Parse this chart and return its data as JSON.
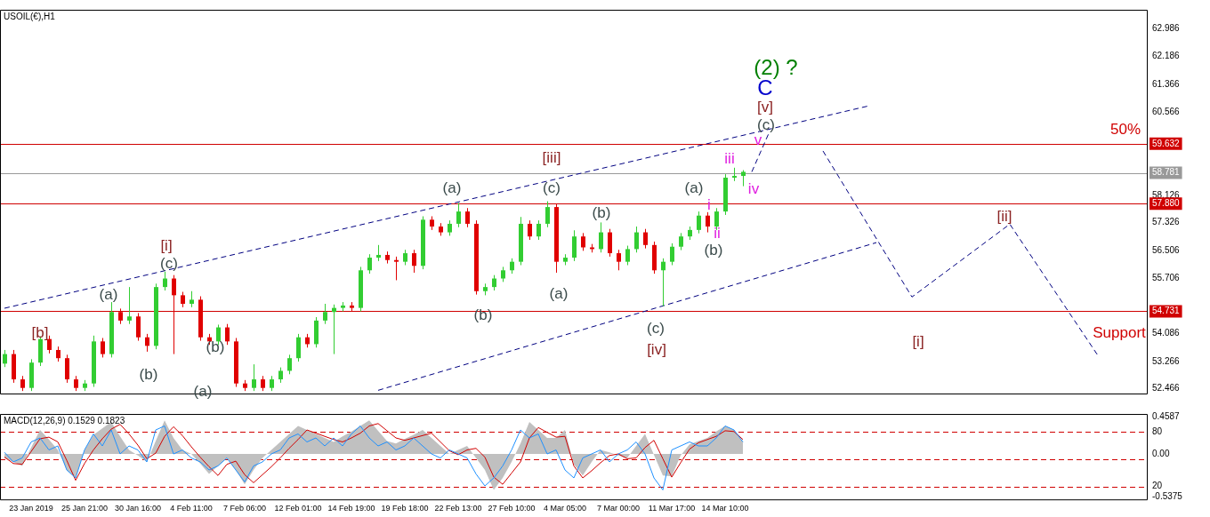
{
  "chart_data": [
    {
      "type": "candlestick",
      "title": "USOIL(€),H1",
      "tick_labels": "y",
      "line_style": "dashed",
      "categories": [
        null,
        null,
        null,
        null,
        null,
        null,
        null,
        null,
        null,
        null,
        null,
        null,
        null,
        null,
        null,
        null,
        null,
        null,
        null,
        null,
        null,
        null,
        null,
        null,
        null,
        null,
        null,
        null,
        null,
        null,
        null,
        null,
        null,
        null,
        null,
        null,
        null,
        null,
        null,
        null,
        null,
        null,
        null,
        null,
        null,
        null,
        null,
        null,
        null,
        null,
        null,
        null,
        null,
        null,
        null,
        null,
        null,
        null,
        null,
        null,
        null,
        null,
        null,
        null,
        null,
        null,
        null,
        null,
        null,
        null,
        null,
        null,
        null,
        null,
        null,
        null,
        null,
        null,
        null,
        null,
        null,
        null,
        null,
        null,
        null,
        null,
        null,
        null,
        null,
        null,
        null,
        null,
        null,
        null,
        null,
        null,
        null,
        null,
        null,
        null,
        null,
        null,
        null,
        null,
        null,
        null,
        null,
        null,
        null,
        null,
        null,
        null,
        null,
        null,
        null,
        null,
        null,
        null,
        null,
        null,
        null,
        null,
        null,
        null,
        null,
        null,
        null,
        null,
        null
      ],
      "ohlc": [
        [
          53.2,
          53.6,
          53.1,
          53.48
        ],
        [
          53.48,
          53.6,
          52.64,
          52.74
        ],
        [
          52.74,
          52.84,
          52.4,
          52.49
        ],
        [
          52.49,
          53.33,
          52.4,
          53.23
        ],
        [
          53.23,
          54.0,
          53.13,
          53.92
        ],
        [
          53.92,
          54.02,
          53.5,
          53.6
        ],
        [
          53.6,
          53.7,
          53.26,
          53.36
        ],
        [
          53.36,
          53.46,
          52.64,
          52.74
        ],
        [
          52.74,
          52.84,
          52.4,
          52.49
        ],
        [
          52.49,
          52.72,
          52.4,
          52.62
        ],
        [
          52.62,
          54.02,
          52.52,
          53.85
        ],
        [
          53.85,
          53.95,
          53.38,
          53.48
        ],
        [
          53.48,
          55.0,
          53.38,
          54.71
        ],
        [
          54.71,
          54.81,
          54.36,
          54.46
        ],
        [
          54.46,
          55.44,
          54.36,
          54.58
        ],
        [
          54.58,
          54.68,
          53.87,
          53.97
        ],
        [
          53.97,
          54.07,
          53.55,
          53.72
        ],
        [
          53.72,
          55.54,
          53.62,
          55.44
        ],
        [
          55.44,
          55.89,
          55.34,
          55.69
        ],
        [
          55.69,
          55.79,
          53.48,
          55.2
        ],
        [
          55.2,
          55.3,
          54.85,
          54.95
        ],
        [
          54.95,
          55.32,
          54.85,
          55.07
        ],
        [
          55.07,
          55.17,
          53.87,
          53.97
        ],
        [
          53.97,
          54.07,
          53.75,
          53.85
        ],
        [
          53.85,
          54.34,
          53.75,
          54.26
        ],
        [
          54.26,
          54.36,
          53.75,
          53.85
        ],
        [
          53.85,
          53.95,
          52.52,
          52.62
        ],
        [
          52.62,
          52.72,
          52.4,
          52.49
        ],
        [
          52.49,
          53.18,
          52.4,
          52.74
        ],
        [
          52.74,
          52.84,
          52.4,
          52.49
        ],
        [
          52.49,
          52.84,
          52.4,
          52.74
        ],
        [
          52.74,
          53.09,
          52.64,
          52.99
        ],
        [
          52.99,
          53.46,
          52.89,
          53.36
        ],
        [
          53.36,
          54.07,
          53.26,
          53.97
        ],
        [
          53.97,
          54.07,
          53.67,
          53.77
        ],
        [
          53.77,
          54.56,
          53.67,
          54.46
        ],
        [
          54.46,
          54.95,
          54.36,
          54.71
        ],
        [
          54.71,
          54.93,
          53.48,
          54.83
        ],
        [
          54.83,
          55.0,
          54.73,
          54.9
        ],
        [
          54.9,
          55.0,
          54.73,
          54.83
        ],
        [
          54.83,
          56.03,
          54.73,
          55.93
        ],
        [
          55.93,
          56.4,
          55.83,
          56.3
        ],
        [
          56.3,
          56.67,
          56.2,
          56.38
        ],
        [
          56.38,
          56.48,
          56.13,
          56.23
        ],
        [
          56.23,
          56.33,
          55.64,
          56.18
        ],
        [
          56.18,
          56.53,
          56.08,
          56.43
        ],
        [
          56.43,
          56.53,
          55.86,
          56.06
        ],
        [
          56.06,
          57.51,
          55.96,
          57.41
        ],
        [
          57.41,
          57.51,
          57.11,
          57.21
        ],
        [
          57.21,
          57.31,
          56.94,
          57.04
        ],
        [
          57.04,
          57.39,
          56.94,
          57.29
        ],
        [
          57.29,
          57.9,
          57.19,
          57.65
        ],
        [
          57.65,
          57.75,
          57.19,
          57.29
        ],
        [
          57.29,
          57.39,
          55.22,
          55.32
        ],
        [
          55.32,
          55.54,
          55.2,
          55.44
        ],
        [
          55.44,
          55.79,
          55.34,
          55.69
        ],
        [
          55.69,
          56.03,
          55.59,
          55.93
        ],
        [
          55.93,
          56.28,
          55.83,
          56.18
        ],
        [
          56.18,
          57.49,
          56.08,
          57.29
        ],
        [
          57.29,
          57.39,
          56.82,
          56.92
        ],
        [
          56.92,
          57.39,
          56.82,
          57.29
        ],
        [
          57.29,
          57.95,
          57.19,
          57.78
        ],
        [
          57.78,
          57.88,
          55.86,
          56.18
        ],
        [
          56.18,
          56.4,
          56.08,
          56.3
        ],
        [
          56.3,
          57.1,
          56.2,
          56.92
        ],
        [
          56.92,
          57.02,
          56.5,
          56.6
        ],
        [
          56.6,
          56.7,
          56.45,
          56.55
        ],
        [
          56.55,
          57.33,
          56.45,
          57.04
        ],
        [
          57.04,
          57.14,
          56.33,
          56.43
        ],
        [
          56.43,
          56.53,
          55.93,
          56.18
        ],
        [
          56.18,
          56.65,
          56.08,
          56.55
        ],
        [
          56.55,
          57.21,
          56.45,
          57.04
        ],
        [
          57.04,
          57.14,
          56.57,
          56.67
        ],
        [
          56.67,
          56.77,
          55.83,
          55.93
        ],
        [
          55.93,
          56.28,
          54.88,
          56.18
        ],
        [
          56.18,
          56.72,
          56.08,
          56.62
        ],
        [
          56.62,
          57.02,
          56.52,
          56.92
        ],
        [
          56.92,
          57.21,
          56.82,
          57.11
        ],
        [
          57.11,
          57.65,
          57.01,
          57.53
        ],
        [
          57.53,
          57.63,
          57.04,
          57.21
        ],
        [
          57.21,
          57.75,
          57.11,
          57.65
        ],
        [
          57.65,
          58.74,
          57.55,
          58.64
        ],
        [
          58.64,
          58.93,
          58.54,
          58.69
        ],
        [
          58.69,
          58.86,
          58.39,
          58.81
        ],
        null,
        null,
        null,
        null,
        null,
        null,
        null,
        null,
        null,
        null,
        null,
        null,
        null,
        null,
        null,
        null,
        null,
        null,
        null,
        null,
        null,
        null,
        null,
        null,
        null,
        null,
        null,
        null,
        null,
        null,
        null,
        null,
        null,
        null,
        null,
        null,
        null,
        null,
        null,
        null,
        null,
        null,
        null,
        null,
        null
      ],
      "colors": [
        "#32cd32",
        "#e00000",
        "#e00000",
        "#32cd32",
        "#32cd32",
        "#e00000",
        "#e00000",
        "#e00000",
        "#e00000",
        "#32cd32",
        "#32cd32",
        "#e00000",
        "#32cd32",
        "#e00000",
        "#32cd32",
        "#e00000",
        "#e00000",
        "#32cd32",
        "#32cd32",
        "#e00000",
        "#e00000",
        "#32cd32",
        "#e00000",
        "#e00000",
        "#32cd32",
        "#e00000",
        "#e00000",
        "#e00000",
        "#32cd32",
        "#e00000",
        "#32cd32",
        "#32cd32",
        "#32cd32",
        "#32cd32",
        "#e00000",
        "#32cd32",
        "#32cd32",
        "#32cd32",
        "#32cd32",
        "#e00000",
        "#32cd32",
        "#32cd32",
        "#32cd32",
        "#e00000",
        "#e00000",
        "#32cd32",
        "#e00000",
        "#32cd32",
        "#e00000",
        "#e00000",
        "#32cd32",
        "#32cd32",
        "#e00000",
        "#e00000",
        "#32cd32",
        "#32cd32",
        "#32cd32",
        "#32cd32",
        "#32cd32",
        "#e00000",
        "#32cd32",
        "#32cd32",
        "#e00000",
        "#32cd32",
        "#32cd32",
        "#e00000",
        "#e00000",
        "#32cd32",
        "#e00000",
        "#e00000",
        "#32cd32",
        "#32cd32",
        "#e00000",
        "#e00000",
        "#32cd32",
        "#32cd32",
        "#32cd32",
        "#32cd32",
        "#32cd32",
        "#e00000",
        "#32cd32",
        "#32cd32",
        "#32cd32",
        "#32cd32",
        null,
        null,
        null,
        null,
        null,
        null,
        null,
        null,
        null,
        null,
        null,
        null,
        null,
        null,
        null,
        null,
        null,
        null,
        null,
        null,
        null,
        null,
        null,
        null,
        null,
        null,
        null,
        null,
        null,
        null,
        null,
        null,
        null,
        null,
        null,
        null,
        null,
        null,
        null,
        null,
        null,
        null,
        null,
        null,
        null
      ],
      "ylim": [
        52.3,
        63.55
      ],
      "yticks": [
        62.986,
        62.186,
        61.366,
        60.566,
        58.126,
        57.326,
        56.506,
        55.706,
        54.086,
        53.266,
        52.466
      ],
      "series": [
        {
          "type": "line",
          "color": "#000080",
          "values": [
            54.82,
            null,
            null,
            null,
            null,
            null,
            null,
            null,
            null,
            null,
            null,
            null,
            null,
            null,
            null,
            null,
            null,
            null,
            null,
            null,
            null,
            null,
            null,
            null,
            null,
            null,
            null,
            null,
            null,
            null,
            null,
            null,
            null,
            null,
            null,
            null,
            null,
            null,
            null,
            null,
            null,
            null,
            null,
            null,
            null,
            null,
            null,
            null,
            null,
            null,
            null,
            null,
            null,
            null,
            null,
            null,
            null,
            null,
            null,
            null,
            null,
            null,
            null,
            null,
            null,
            null,
            null,
            null,
            null,
            null,
            null,
            null,
            null,
            null,
            null,
            null,
            null,
            null,
            null,
            null,
            null,
            null,
            null,
            null,
            null,
            null,
            null,
            null,
            null,
            null,
            null,
            null,
            null,
            null,
            null,
            null,
            null,
            60.73,
            null,
            null,
            null,
            null,
            null,
            null,
            null,
            null,
            null,
            null,
            null,
            null,
            null,
            null,
            null,
            null,
            null,
            null,
            null,
            null,
            null,
            null,
            null,
            null,
            null,
            null,
            null,
            null,
            null,
            null,
            null
          ]
        },
        {
          "type": "line",
          "color": "#000080",
          "values": [
            null,
            null,
            null,
            null,
            null,
            null,
            null,
            null,
            null,
            null,
            null,
            null,
            null,
            null,
            null,
            null,
            null,
            null,
            null,
            null,
            null,
            null,
            null,
            null,
            null,
            null,
            null,
            null,
            null,
            null,
            null,
            null,
            null,
            null,
            null,
            null,
            null,
            null,
            null,
            null,
            null,
            null,
            52.42,
            null,
            null,
            null,
            null,
            null,
            null,
            null,
            null,
            null,
            null,
            null,
            null,
            null,
            null,
            null,
            null,
            null,
            null,
            null,
            null,
            null,
            null,
            null,
            null,
            null,
            null,
            null,
            null,
            null,
            null,
            null,
            null,
            null,
            null,
            null,
            null,
            null,
            null,
            null,
            null,
            null,
            null,
            null,
            null,
            null,
            null,
            null,
            null,
            null,
            null,
            null,
            null,
            null,
            null,
            null,
            56.74,
            null,
            null,
            null,
            null,
            null,
            null,
            null,
            null,
            null,
            null,
            null,
            null,
            null,
            null,
            null,
            null,
            null,
            null,
            null,
            null,
            null,
            null,
            null,
            null,
            null,
            null,
            null,
            null,
            null,
            null
          ]
        },
        {
          "type": "line",
          "color": "#000080",
          "values": [
            null,
            null,
            null,
            null,
            null,
            null,
            null,
            null,
            null,
            null,
            null,
            null,
            null,
            null,
            null,
            null,
            null,
            null,
            null,
            null,
            null,
            null,
            null,
            null,
            null,
            null,
            null,
            null,
            null,
            null,
            null,
            null,
            null,
            null,
            null,
            null,
            null,
            null,
            null,
            null,
            null,
            null,
            null,
            null,
            null,
            null,
            null,
            null,
            null,
            null,
            null,
            null,
            null,
            null,
            null,
            null,
            null,
            null,
            null,
            null,
            null,
            null,
            null,
            null,
            null,
            null,
            null,
            null,
            null,
            null,
            null,
            null,
            null,
            null,
            null,
            null,
            null,
            null,
            null,
            null,
            null,
            null,
            null,
            null,
            58.81,
            null,
            59.99,
            null,
            null,
            null,
            null,
            null,
            null,
            null,
            null,
            null,
            null,
            null,
            null,
            null,
            null,
            null,
            null,
            null,
            null,
            null,
            null,
            null,
            null,
            null,
            null,
            null,
            null,
            null,
            null,
            null,
            null,
            null,
            null,
            null,
            null,
            null,
            null,
            null,
            null,
            null,
            null,
            null,
            null
          ]
        },
        {
          "type": "line",
          "color": "#000080",
          "values": [
            null,
            null,
            null,
            null,
            null,
            null,
            null,
            null,
            null,
            null,
            null,
            null,
            null,
            null,
            null,
            null,
            null,
            null,
            null,
            null,
            null,
            null,
            null,
            null,
            null,
            null,
            null,
            null,
            null,
            null,
            null,
            null,
            null,
            null,
            null,
            null,
            null,
            null,
            null,
            null,
            null,
            null,
            null,
            null,
            null,
            null,
            null,
            null,
            null,
            null,
            null,
            null,
            null,
            null,
            null,
            null,
            null,
            null,
            null,
            null,
            null,
            null,
            null,
            null,
            null,
            null,
            null,
            null,
            null,
            null,
            null,
            null,
            null,
            null,
            null,
            null,
            null,
            null,
            null,
            null,
            null,
            null,
            null,
            null,
            null,
            null,
            null,
            null,
            null,
            null,
            null,
            null,
            59.42,
            null,
            null,
            null,
            null,
            null,
            null,
            null,
            null,
            null,
            55.15,
            null,
            null,
            null,
            null,
            null,
            null,
            null,
            null,
            null,
            null,
            57.28,
            null,
            null,
            null,
            null,
            null,
            null,
            null,
            null,
            null,
            53.4,
            null,
            null,
            null,
            null,
            null
          ]
        }
      ],
      "ref_lines": [
        {
          "axis": "y",
          "value": 59.632,
          "label": "59.632",
          "color": "#d00000",
          "line_style": "solid"
        },
        {
          "axis": "y",
          "value": 58.781,
          "label": "58.781",
          "color": "#999999",
          "line_style": "solid"
        },
        {
          "axis": "y",
          "value": 57.88,
          "label": "57.880",
          "color": "#d00000",
          "line_style": "solid"
        },
        {
          "axis": "y",
          "value": 54.731,
          "label": "54.731",
          "color": "#d00000",
          "line_style": "solid"
        }
      ],
      "annotations": [
        "[b]",
        "(a)",
        "[i]",
        "(c)",
        "(b)",
        "(a)",
        "(b)",
        "(a)",
        "(b)",
        "[iii]",
        "(c)",
        "(a)",
        "(b)",
        "(c)",
        "[iv]",
        "(a)",
        "i",
        "ii",
        "(b)",
        "iii",
        "iv",
        "v",
        "(c)",
        "[v]",
        "C",
        "(2) ?",
        "[i]",
        "[ii]",
        "50%",
        "Support"
      ]
    },
    {
      "type": "line",
      "title": "MACD(12,26,9) 0.1529 0.1823",
      "categories": [
        null,
        null,
        null,
        "23 Jan 2019",
        null,
        null,
        null,
        null,
        null,
        "25 Jan 21:00",
        null,
        null,
        null,
        null,
        null,
        "30 Jan 16:00",
        null,
        null,
        null,
        null,
        null,
        "4 Feb 11:00",
        null,
        null,
        null,
        null,
        null,
        "7 Feb 06:00",
        null,
        null,
        null,
        null,
        null,
        "12 Feb 01:00",
        null,
        null,
        null,
        null,
        null,
        "14 Feb 19:00",
        null,
        null,
        null,
        null,
        null,
        "19 Feb 18:00",
        null,
        null,
        null,
        null,
        null,
        "22 Feb 13:00",
        null,
        null,
        null,
        null,
        null,
        "27 Feb 10:00",
        null,
        null,
        null,
        null,
        null,
        "4 Mar 05:00",
        null,
        null,
        null,
        null,
        null,
        "7 Mar 00:00",
        null,
        null,
        null,
        null,
        null,
        "11 Mar 17:00",
        null,
        null,
        null,
        null,
        null,
        "14 Mar 10:00",
        null,
        null,
        null,
        null,
        null,
        null,
        null,
        null,
        null,
        null,
        null,
        null,
        null,
        null,
        null,
        null,
        null,
        null,
        null,
        null,
        null,
        null,
        null,
        null,
        null,
        null,
        null,
        null,
        null,
        null,
        null,
        null,
        null,
        null,
        null,
        null,
        null,
        null,
        null,
        null,
        null,
        null,
        null,
        null,
        null,
        null,
        null
      ],
      "ylim": [
        -0.58,
        0.5
      ],
      "yticks": [
        0.4587,
        {
          "value": 0,
          "label": "0.00"
        },
        -0.5375
      ],
      "y2lim": [
        4.8,
        100
      ],
      "y2ticks": [
        80,
        20
      ],
      "series": [
        {
          "type": "area",
          "color": "#c0c0c0",
          "values": [
            -0.05,
            -0.1,
            -0.15,
            0.08,
            0.3,
            0.18,
            0.05,
            -0.2,
            -0.3,
            0.05,
            0.24,
            0.32,
            0.4,
            0.22,
            0.05,
            -0.02,
            -0.1,
            0.16,
            0.42,
            0.2,
            0.05,
            0,
            -0.12,
            -0.25,
            -0.15,
            -0.05,
            -0.2,
            -0.38,
            -0.2,
            -0.05,
            0.05,
            0.15,
            0.25,
            0.35,
            0.3,
            0.25,
            0.2,
            0.15,
            0.22,
            0.28,
            0.35,
            0.42,
            0.29,
            0.16,
            0.13,
            0.19,
            0.24,
            0.3,
            0.2,
            0.1,
            0,
            0.05,
            0.1,
            -0.05,
            -0.2,
            -0.45,
            -0.3,
            -0.1,
            0.13,
            0.4,
            0.3,
            0.2,
            0.2,
            0.3,
            -0.13,
            -0.27,
            -0.1,
            0.05,
            0.02,
            -0.02,
            -0.05,
            0.1,
            0.25,
            -0.01,
            -0.27,
            -0.28,
            -0.02,
            0.12,
            0.16,
            0.2,
            0.28,
            0.35,
            0.3,
            0.15,
            null,
            null,
            null,
            null,
            null,
            null,
            null,
            null,
            null,
            null,
            null,
            null,
            null,
            null,
            null,
            null,
            null,
            null,
            null,
            null,
            null,
            null,
            null,
            null,
            null,
            null,
            null,
            null,
            null,
            null,
            null,
            null,
            null,
            null,
            null,
            null,
            null,
            null,
            null,
            null,
            null,
            null,
            null,
            null,
            null
          ]
        },
        {
          "type": "line",
          "color": "#1e90ff",
          "values": [
            0.02,
            -0.1,
            -0.05,
            0.15,
            0.2,
            0.05,
            0.1,
            -0.2,
            -0.3,
            0.05,
            0.25,
            0.1,
            0.3,
            0,
            0.1,
            0.05,
            -0.1,
            0.3,
            0.35,
            0,
            0.05,
            -0.05,
            -0.1,
            -0.2,
            -0.15,
            -0.05,
            -0.2,
            -0.35,
            -0.15,
            -0.1,
            0,
            0.05,
            0.2,
            0.25,
            0.15,
            0.2,
            0.1,
            0.2,
            0.1,
            0.25,
            0.35,
            0.2,
            0.1,
            0.15,
            0.05,
            0.1,
            0.2,
            0.1,
            0,
            -0.05,
            0.05,
            0,
            -0.05,
            -0.25,
            -0.4,
            -0.3,
            -0.15,
            0.05,
            0.3,
            0.2,
            0.25,
            0,
            0.05,
            -0.2,
            -0.3,
            -0.05,
            0,
            0.05,
            -0.1,
            0,
            0.05,
            0.15,
            0,
            -0.3,
            -0.45,
            0.05,
            0.1,
            0.15,
            0.1,
            0.1,
            0.2,
            0.35,
            0.3,
            0.15,
            null,
            null,
            null,
            null,
            null,
            null,
            null,
            null,
            null,
            null,
            null,
            null,
            null,
            null,
            null,
            null,
            null,
            null,
            null,
            null,
            null,
            null,
            null,
            null,
            null,
            null,
            null,
            null,
            null,
            null,
            null,
            null,
            null,
            null,
            null,
            null,
            null,
            null,
            null,
            null,
            null,
            null,
            null,
            null,
            null
          ]
        },
        {
          "type": "line",
          "color": "#d00000",
          "values": [
            -0.04,
            -0.12,
            -0.13,
            0.03,
            0.19,
            0.21,
            0.15,
            -0.08,
            -0.33,
            -0.12,
            0.05,
            0.19,
            0.31,
            0.37,
            0.25,
            0.11,
            -0.06,
            0.01,
            0.22,
            0.34,
            0.23,
            0.09,
            -0.04,
            -0.16,
            -0.27,
            -0.13,
            -0.09,
            -0.26,
            -0.36,
            -0.26,
            -0.16,
            -0.05,
            0.07,
            0.18,
            0.3,
            0.26,
            0.22,
            0.18,
            0.15,
            0.2,
            0.26,
            0.35,
            0.38,
            0.29,
            0.2,
            0.17,
            0.2,
            0.23,
            0.26,
            0.15,
            0.04,
            -0.01,
            0.05,
            0.07,
            -0.04,
            -0.29,
            -0.38,
            -0.24,
            -0.1,
            0.2,
            0.33,
            0.27,
            0.21,
            0.22,
            -0.15,
            -0.3,
            -0.21,
            -0.11,
            -0.02,
            0,
            -0.06,
            -0.05,
            0.08,
            0.17,
            -0.06,
            -0.29,
            -0.11,
            0.06,
            0.14,
            0.18,
            0.22,
            0.29,
            0.28,
            0.18,
            null,
            null,
            null,
            null,
            null,
            null,
            null,
            null,
            null,
            null,
            null,
            null,
            null,
            null,
            null,
            null,
            null,
            null,
            null,
            null,
            null,
            null,
            null,
            null,
            null,
            null,
            null,
            null,
            null,
            null,
            null,
            null,
            null,
            null,
            null,
            null,
            null,
            null,
            null,
            null,
            null,
            null,
            null,
            null,
            null
          ]
        }
      ],
      "ref_lines": [
        {
          "axis": "y2",
          "value": 80,
          "color": "#d00000",
          "line_style": "dashed"
        },
        {
          "axis": "y2",
          "value": 50,
          "color": "#d00000",
          "line_style": "dashed"
        },
        {
          "axis": "y2",
          "value": 20,
          "color": "#d00000",
          "line_style": "dashed"
        }
      ]
    }
  ]
}
